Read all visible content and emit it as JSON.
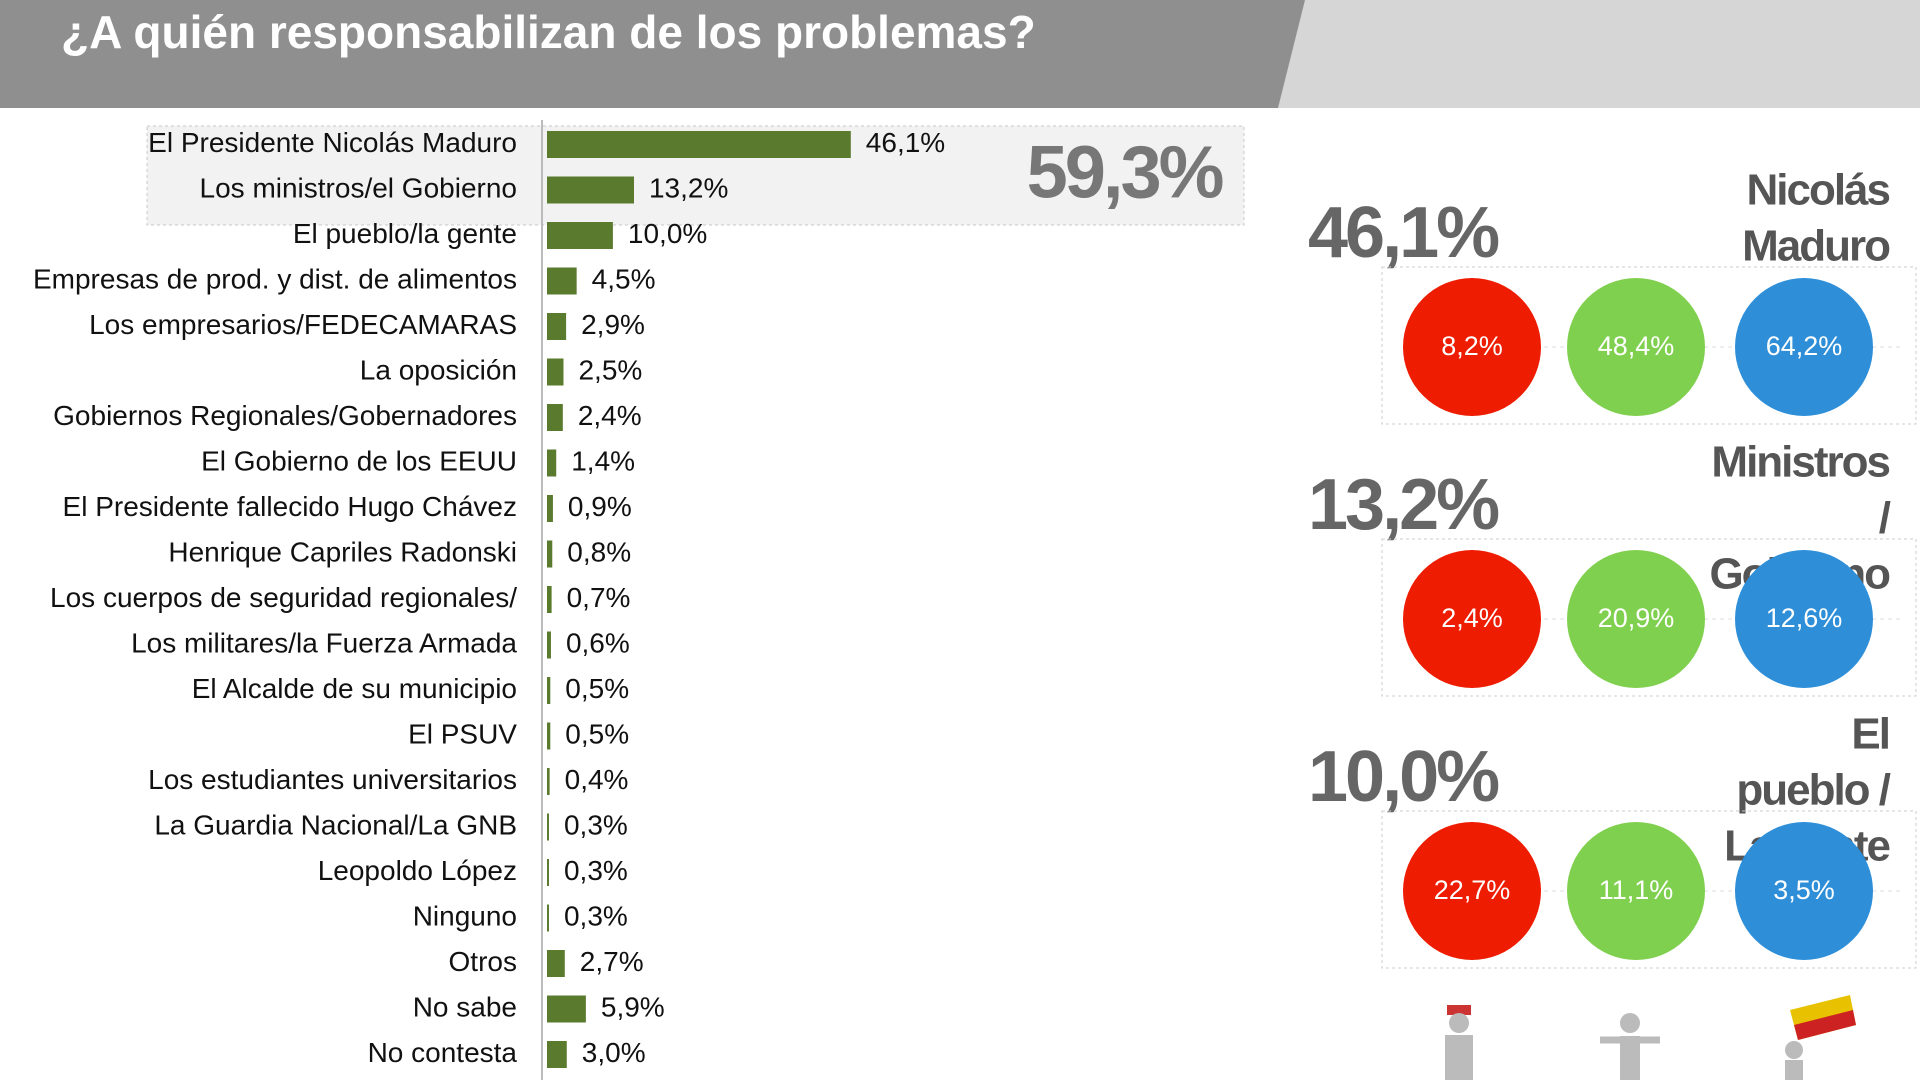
{
  "chart_data": [
    {
      "type": "hbar",
      "title": "¿A quién responsabilizan de los problemas?",
      "categories": [
        "El Presidente Nicolás Maduro",
        "Los ministros/el Gobierno",
        "El pueblo/la gente",
        "Empresas de prod. y dist. de alimentos",
        "Los empresarios/FEDECAMARAS",
        "La oposición",
        "Gobiernos Regionales/Gobernadores",
        "El Gobierno de los EEUU",
        "El Presidente fallecido Hugo Chávez",
        "Henrique Capriles Radonski",
        "Los cuerpos de seguridad regionales/",
        "Los militares/la Fuerza Armada",
        "El Alcalde de su municipio",
        "El PSUV",
        "Los estudiantes universitarios",
        "La Guardia Nacional/La GNB",
        "Leopoldo López",
        "Ninguno",
        "Otros",
        "No sabe",
        "No contesta"
      ],
      "values": [
        46.1,
        13.2,
        10.0,
        4.5,
        2.9,
        2.5,
        2.4,
        1.4,
        0.9,
        0.8,
        0.7,
        0.6,
        0.5,
        0.5,
        0.4,
        0.3,
        0.3,
        0.3,
        2.7,
        5.9,
        3.0
      ],
      "value_labels": [
        "46,1%",
        "13,2%",
        "10,0%",
        "4,5%",
        "2,9%",
        "2,5%",
        "2,4%",
        "1,4%",
        "0,9%",
        "0,8%",
        "0,7%",
        "0,6%",
        "0,5%",
        "0,5%",
        "0,4%",
        "0,3%",
        "0,3%",
        "0,3%",
        "2,7%",
        "5,9%",
        "3,0%"
      ],
      "color": "#5a7a2e",
      "annotation": {
        "value": 59.3,
        "label": "59,3%"
      }
    },
    {
      "type": "circles",
      "colors": [
        "#ee1c00",
        "#80d050",
        "#2e8fd8"
      ],
      "groups": [
        {
          "value": 46.1,
          "label": "46,1%",
          "name_lines": [
            "Nicolás",
            "Maduro"
          ],
          "values": [
            8.2,
            48.4,
            64.2
          ],
          "value_labels": [
            "8,2%",
            "48,4%",
            "64,2%"
          ]
        },
        {
          "value": 13.2,
          "label": "13,2%",
          "name_lines": [
            "Ministros",
            "/",
            "Gobierno"
          ],
          "values": [
            2.4,
            20.9,
            12.6
          ],
          "value_labels": [
            "2,4%",
            "20,9%",
            "12,6%"
          ]
        },
        {
          "value": 10.0,
          "label": "10,0%",
          "name_lines": [
            "El",
            "pueblo /",
            "La gente"
          ],
          "values": [
            22.7,
            11.1,
            3.5
          ],
          "value_labels": [
            "22,7%",
            "11,1%",
            "3,5%"
          ]
        }
      ]
    }
  ]
}
